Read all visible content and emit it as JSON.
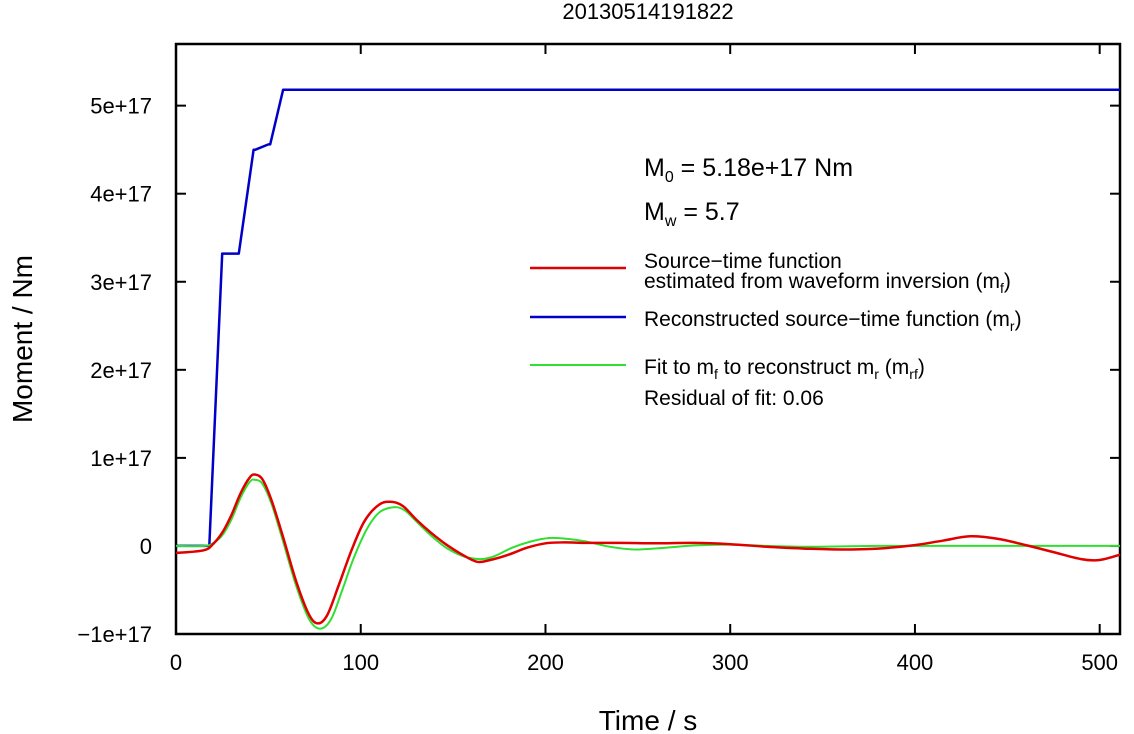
{
  "chart_data": {
    "type": "line",
    "title": "20130514191822",
    "xlabel": "Time / s",
    "ylabel": "Moment / Nm",
    "xlim": [
      0,
      511
    ],
    "ylim": [
      -1e+17,
      5.7e+17
    ],
    "x_ticks": [
      0,
      100,
      200,
      300,
      400,
      500
    ],
    "x_tick_labels": [
      "0",
      "100",
      "200",
      "300",
      "400",
      "500"
    ],
    "y_ticks": [
      -1e+17,
      0,
      1e+17,
      2e+17,
      3e+17,
      4e+17,
      5e+17
    ],
    "y_tick_labels": [
      "−1e+17",
      "0",
      "1e+17",
      "2e+17",
      "3e+17",
      "4e+17",
      "5e+17"
    ],
    "grid": false,
    "legend_position": "right",
    "annotations": {
      "m0_prefix": "M",
      "m0_sub": "0",
      "m0_value": " = 5.18e+17 Nm",
      "mw_prefix": "M",
      "mw_sub": "w",
      "mw_value": " = 5.7",
      "residual": "Residual of fit: 0.06"
    },
    "legend": {
      "stf_line1": "Source−time function",
      "stf_line2": "estimated from waveform inversion (m",
      "stf_sub": "f",
      "stf_close": ")",
      "rec_text": "Reconstructed source−time function (m",
      "rec_sub": "r",
      "rec_close": ")",
      "fit_text1": "Fit to m",
      "fit_sub1": "f",
      "fit_text2": " to reconstruct m",
      "fit_sub2": "r",
      "fit_text3": " (m",
      "fit_sub3": "rf",
      "fit_close": ")"
    },
    "series": [
      {
        "key": "mf",
        "color": "#e00000",
        "x": [
          0,
          15,
          20,
          25,
          30,
          35,
          40,
          43,
          47,
          52,
          58,
          65,
          72,
          77,
          82,
          88,
          95,
          102,
          110,
          117,
          123,
          130,
          138,
          146,
          155,
          163,
          170,
          180,
          190,
          200,
          210,
          222,
          240,
          260,
          280,
          300,
          320,
          340,
          360,
          380,
          400,
          415,
          430,
          445,
          460,
          475,
          490,
          500,
          511
        ],
        "y": [
          -8000000000000000.0,
          -5000000000000000.0,
          2000000000000000.0,
          1.5e+16,
          3.5e+16,
          6e+16,
          7.8e+16,
          8.1e+16,
          7.5e+16,
          5e+16,
          1e+16,
          -4e+16,
          -7.8e+16,
          -8.8e+16,
          -7.8e+16,
          -4.5e+16,
          -5000000000000000.0,
          2.8e+16,
          4.7e+16,
          5e+16,
          4.5e+16,
          3e+16,
          1.5e+16,
          2000000000000000.0,
          -1e+16,
          -1.8e+16,
          -1.6e+16,
          -1e+16,
          -2000000000000000.0,
          3000000000000000.0,
          4000000000000000.0,
          3500000000000000.0,
          3500000000000000.0,
          3000000000000000.0,
          3500000000000000.0,
          2000000000000000.0,
          -1000000000000000.0,
          -3000000000000000.0,
          -4000000000000000.0,
          -3000000000000000.0,
          1000000000000000.0,
          6000000000000000.0,
          1.1e+16,
          8000000000000000.0,
          1000000000000000.0,
          -7000000000000000.0,
          -1.5e+16,
          -1.6e+16,
          -1e+16
        ]
      },
      {
        "key": "mr",
        "color": "#0000c8",
        "x": [
          0,
          18,
          25,
          26,
          33,
          34,
          42,
          43,
          50,
          51,
          58,
          511
        ],
        "y": [
          0,
          0,
          3.32e+17,
          3.32e+17,
          3.32e+17,
          3.32e+17,
          4.5e+17,
          4.5e+17,
          4.56e+17,
          4.56e+17,
          5.18e+17,
          5.18e+17
        ]
      },
      {
        "key": "mrf",
        "color": "#30e030",
        "x": [
          0,
          15,
          20,
          25,
          30,
          35,
          40,
          43,
          47,
          52,
          58,
          65,
          72,
          78,
          84,
          90,
          96,
          103,
          110,
          118,
          124,
          131,
          139,
          147,
          156,
          165,
          172,
          182,
          192,
          202,
          212,
          222,
          235,
          248,
          262,
          280,
          300,
          320,
          340,
          360,
          380,
          400,
          430,
          460,
          490,
          511
        ],
        "y": [
          0,
          0,
          3000000000000000.0,
          1.2e+16,
          3e+16,
          5.5e+16,
          7.3e+16,
          7.5e+16,
          7e+16,
          4.6e+16,
          5000000000000000.0,
          -4.5e+16,
          -8.3e+16,
          -9.4e+16,
          -8.3e+16,
          -5e+16,
          -1.5e+16,
          1.8e+16,
          3.8e+16,
          4.4e+16,
          4e+16,
          2.6e+16,
          1e+16,
          -3000000000000000.0,
          -1.2e+16,
          -1.5e+16,
          -1.2e+16,
          -2000000000000000.0,
          5000000000000000.0,
          9000000000000000.0,
          8000000000000000.0,
          5000000000000000.0,
          -1000000000000000.0,
          -4000000000000000.0,
          -2500000000000000.0,
          500000000000000.0,
          1500000000000000.0,
          0.0,
          -1000000000000000.0,
          -500000000000000.0,
          0.0,
          0.0,
          0.0,
          0.0,
          0.0,
          0.0
        ]
      }
    ]
  }
}
